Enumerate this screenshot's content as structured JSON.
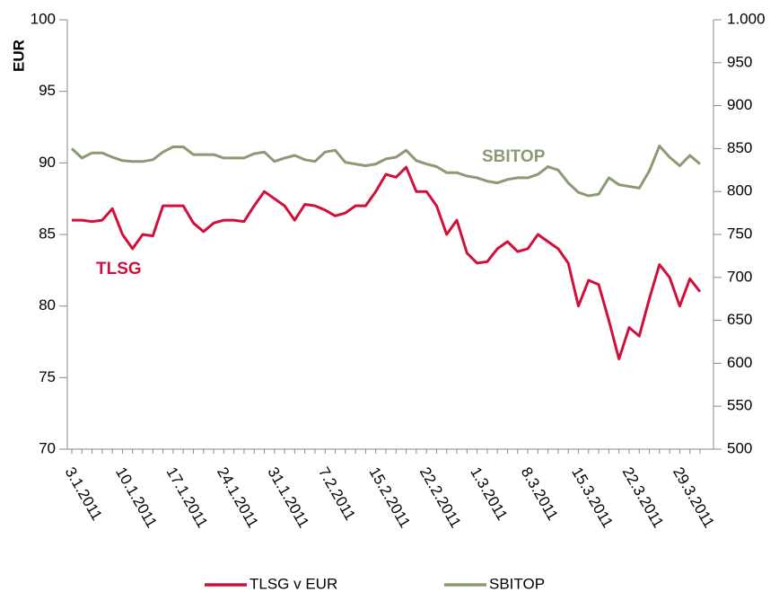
{
  "chart_data": {
    "type": "line",
    "ylabel": "EUR",
    "categories": [
      "3.1.2011",
      null,
      null,
      null,
      null,
      "10.1.2011",
      null,
      null,
      null,
      null,
      "17.1.2011",
      null,
      null,
      null,
      null,
      "24.1.2011",
      null,
      null,
      null,
      null,
      "31.1.2011",
      null,
      null,
      null,
      null,
      "7.2.2011",
      null,
      null,
      null,
      null,
      "15.2.2011",
      null,
      null,
      null,
      null,
      "22.2.2011",
      null,
      null,
      null,
      null,
      "1.3.2011",
      null,
      null,
      null,
      null,
      "8.3.2011",
      null,
      null,
      null,
      null,
      "15.3.2011",
      null,
      null,
      null,
      null,
      "22.3.2011",
      null,
      null,
      null,
      null,
      "29.3.2011",
      null,
      null
    ],
    "series": [
      {
        "name": "TLSG v EUR",
        "color": "#d0103a",
        "axis": "y",
        "values": [
          86.0,
          86.0,
          85.9,
          86.0,
          86.8,
          85.0,
          84.0,
          85.0,
          84.9,
          87.0,
          87.0,
          87.0,
          85.8,
          85.2,
          85.8,
          86.0,
          86.0,
          85.9,
          87.0,
          88.0,
          87.5,
          87.0,
          86.0,
          87.1,
          87.0,
          86.7,
          86.3,
          86.5,
          87.0,
          87.0,
          88.0,
          89.2,
          89.0,
          89.7,
          88.0,
          88.0,
          87.0,
          85.0,
          86.0,
          83.7,
          83.0,
          83.1,
          84.0,
          84.5,
          83.8,
          84.0,
          85.0,
          84.5,
          84.0,
          83.0,
          80.0,
          81.8,
          81.5,
          79.0,
          76.3,
          78.5,
          77.9,
          80.5,
          82.9,
          82.0,
          80.0,
          81.9,
          81.0
        ]
      },
      {
        "name": "SBITOP",
        "color": "#8a9b74",
        "axis": "y2",
        "values": [
          850,
          839,
          845,
          845,
          840,
          836,
          835,
          835,
          837,
          846,
          852,
          852,
          843,
          843,
          843,
          839,
          839,
          839,
          844,
          846,
          835,
          839,
          842,
          837,
          835,
          846,
          848,
          834,
          832,
          830,
          832,
          838,
          840,
          848,
          836,
          832,
          829,
          822,
          822,
          818,
          816,
          812,
          810,
          814,
          816,
          816,
          820,
          829,
          825,
          810,
          799,
          795,
          797,
          816,
          808,
          806,
          804,
          824,
          853,
          840,
          830,
          842,
          832
        ]
      }
    ],
    "annotations": [
      "TLSG",
      "SBITOP"
    ],
    "ylim": [
      70,
      100
    ],
    "yticks": [
      70,
      75,
      80,
      85,
      90,
      95,
      100
    ],
    "y2lim": [
      500,
      1000
    ],
    "y2ticks": [
      500,
      550,
      600,
      650,
      700,
      750,
      800,
      850,
      900,
      950,
      {
        "value": 1000,
        "label": "1.000"
      }
    ],
    "grid": false,
    "legend": "bottom"
  }
}
